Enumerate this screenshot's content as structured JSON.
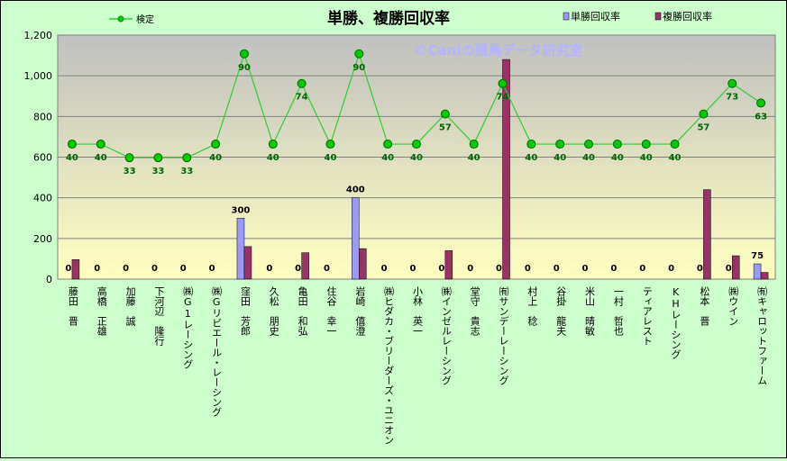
{
  "chart_data": {
    "type": "bar+line",
    "title": "単勝、複勝回収率",
    "watermark": "©Caniの競馬データ研究室",
    "legend": {
      "line_label": "検定",
      "bar1_label": "単勝回収率",
      "bar2_label": "複勝回収率"
    },
    "ylim": [
      0,
      1200
    ],
    "yticks": [
      "0",
      "200",
      "400",
      "600",
      "800",
      "1,000",
      "1,200"
    ],
    "ytick_values": [
      0,
      200,
      400,
      600,
      800,
      1000,
      1200
    ],
    "categories": [
      "藤田　晋",
      "高橋　正雄",
      "加藤　誠",
      "下河辺　隆行",
      "㈱G1レーシング",
      "㈱Gリビエール・レーシング",
      "窪田　芳郎",
      "久松　朋史",
      "亀田　和弘",
      "住谷　幸一",
      "岩崎　僖澄",
      "㈱ヒダカ・ブリーダーズ・ユニオン",
      "小林　英一",
      "㈱インゼルレーシング",
      "堂守　貴志",
      "㈲サンデーレーシング",
      "村上　稔",
      "谷掛　龍夫",
      "米山　晴敏",
      "一村　哲也",
      "ティアレスト",
      "KHレーシング",
      "松本　晋",
      "㈱ウイン",
      "㈲キャロットファーム"
    ],
    "series": [
      {
        "name": "単勝回収率",
        "kind": "bar",
        "color": "#9999ff",
        "values": [
          0,
          0,
          0,
          0,
          0,
          0,
          300,
          0,
          0,
          0,
          400,
          0,
          0,
          0,
          0,
          0,
          0,
          0,
          0,
          0,
          0,
          0,
          0,
          0,
          75
        ]
      },
      {
        "name": "複勝回収率",
        "kind": "bar",
        "color": "#993366",
        "values": [
          96,
          0,
          0,
          0,
          0,
          0,
          160,
          0,
          130,
          0,
          150,
          0,
          0,
          140,
          0,
          1080,
          0,
          0,
          0,
          0,
          0,
          0,
          440,
          115,
          33
        ]
      },
      {
        "name": "検定",
        "kind": "line",
        "color": "#33cc33",
        "values": [
          664,
          664,
          597,
          597,
          597,
          664,
          1108,
          664,
          962,
          664,
          1108,
          664,
          664,
          812,
          664,
          962,
          664,
          664,
          664,
          664,
          664,
          664,
          812,
          962,
          866
        ],
        "labels": [
          "40",
          "40",
          "33",
          "33",
          "33",
          "40",
          "90",
          "40",
          "74",
          "40",
          "90",
          "40",
          "40",
          "57",
          "40",
          "74",
          "40",
          "40",
          "40",
          "40",
          "40",
          "40",
          "57",
          "73",
          "63"
        ]
      }
    ]
  }
}
